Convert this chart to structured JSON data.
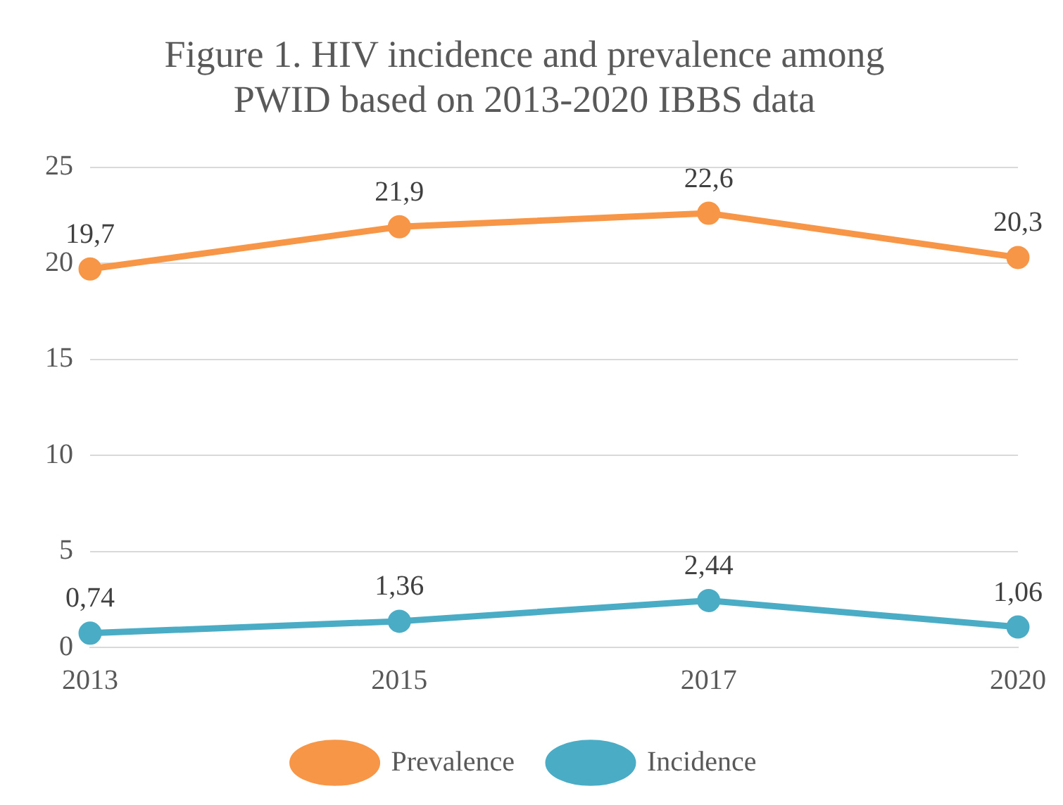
{
  "chart_data": {
    "type": "line",
    "title": "Figure 1. HIV incidence and prevalence among PWID based on 2013-2020 IBBS data",
    "categories": [
      "2013",
      "2015",
      "2017",
      "2020"
    ],
    "series": [
      {
        "name": "Prevalence",
        "color": "#f79646",
        "values": [
          19.7,
          21.9,
          22.6,
          20.3
        ],
        "value_labels": [
          "19,7",
          "21,9",
          "22,6",
          "20,3"
        ]
      },
      {
        "name": "Incidence",
        "color": "#4bacc6",
        "values": [
          0.74,
          1.36,
          2.44,
          1.06
        ],
        "value_labels": [
          "0,74",
          "1,36",
          "2,44",
          "1,06"
        ]
      }
    ],
    "ylim": [
      0,
      25
    ],
    "yticks": [
      0,
      5,
      10,
      15,
      20,
      25
    ],
    "grid": "y",
    "legend": "bottom",
    "marker": "circle",
    "line_style": "solid"
  }
}
